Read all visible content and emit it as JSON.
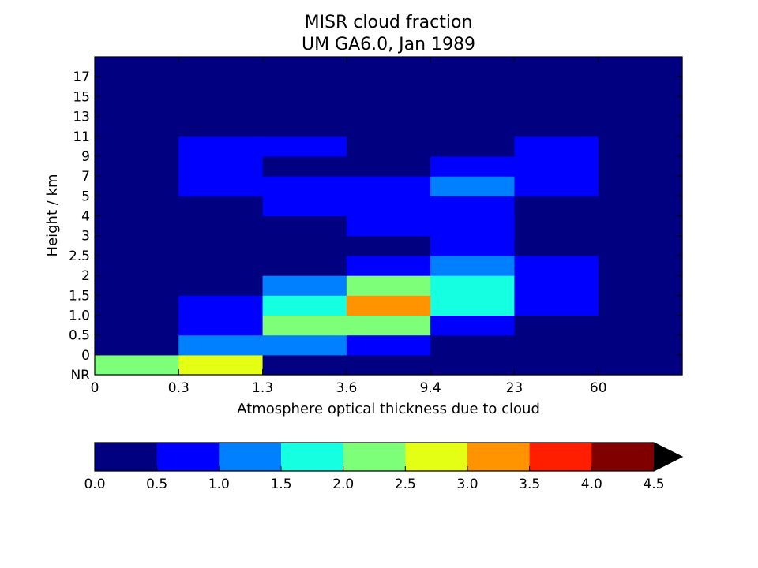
{
  "chart_data": {
    "type": "heatmap",
    "title": "MISR cloud fraction",
    "subtitle": "UM GA6.0, Jan 1989",
    "xlabel": "Atmosphere optical thickness due to cloud",
    "ylabel": "Height / km",
    "x_tick_labels": [
      "0",
      "0.3",
      "1.3",
      "3.6",
      "9.4",
      "23",
      "60"
    ],
    "y_tick_labels": [
      "NR",
      "0",
      "0.5",
      "1.0",
      "1.5",
      "2",
      "2.5",
      "3",
      "4",
      "5",
      "7",
      "9",
      "11",
      "13",
      "15",
      "17"
    ],
    "values_bottom_to_top": [
      [
        2.0,
        2.75,
        0.25,
        0.25,
        0.25,
        0.25,
        0.25
      ],
      [
        0.25,
        1.25,
        1.25,
        0.75,
        0.25,
        0.25,
        0.25
      ],
      [
        0.25,
        0.75,
        2.25,
        2.25,
        0.75,
        0.25,
        0.25
      ],
      [
        0.25,
        0.75,
        1.75,
        3.25,
        1.75,
        0.75,
        0.25
      ],
      [
        0.25,
        0.25,
        1.25,
        2.25,
        1.75,
        0.75,
        0.25
      ],
      [
        0.25,
        0.25,
        0.25,
        0.75,
        1.25,
        0.75,
        0.25
      ],
      [
        0.25,
        0.25,
        0.25,
        0.25,
        0.75,
        0.25,
        0.25
      ],
      [
        0.25,
        0.25,
        0.25,
        0.75,
        0.75,
        0.25,
        0.25
      ],
      [
        0.25,
        0.25,
        0.75,
        0.75,
        0.75,
        0.25,
        0.25
      ],
      [
        0.25,
        0.75,
        0.75,
        0.75,
        1.25,
        0.75,
        0.25
      ],
      [
        0.25,
        0.75,
        0.25,
        0.25,
        0.75,
        0.75,
        0.25
      ],
      [
        0.25,
        0.75,
        0.75,
        0.25,
        0.25,
        0.75,
        0.25
      ],
      [
        0.25,
        0.25,
        0.25,
        0.25,
        0.25,
        0.25,
        0.25
      ],
      [
        0.25,
        0.25,
        0.25,
        0.25,
        0.25,
        0.25,
        0.25
      ],
      [
        0.25,
        0.25,
        0.25,
        0.25,
        0.25,
        0.25,
        0.25
      ],
      [
        0.25,
        0.25,
        0.25,
        0.25,
        0.25,
        0.25,
        0.25
      ]
    ],
    "colorbar": {
      "tick_labels": [
        "0.0",
        "0.5",
        "1.0",
        "1.5",
        "2.0",
        "2.5",
        "3.0",
        "3.5",
        "4.0",
        "4.5"
      ],
      "bounds": [
        0,
        0.5,
        1.0,
        1.5,
        2.0,
        2.5,
        3.0,
        3.5,
        4.0,
        4.5
      ],
      "colors": [
        "#000080",
        "#0000ff",
        "#0080ff",
        "#15ffe1",
        "#7dff7a",
        "#e4ff13",
        "#ff9400",
        "#ff1e00",
        "#800000"
      ],
      "extend_color": "#000000",
      "extend": "max",
      "orientation": "horizontal",
      "placement": "bottom"
    }
  }
}
